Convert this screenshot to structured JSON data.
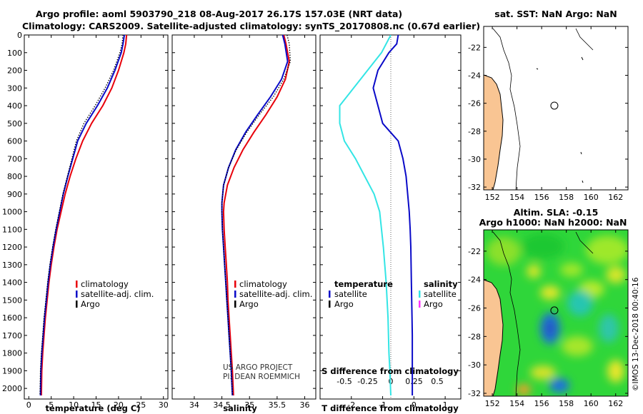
{
  "header": {
    "title_line1": "Argo profile: aoml 5903790_218 08-Aug-2017 26.17S 157.03E (NRT data)",
    "title_line2": "Climatology: CARS2009. Satellite-adjusted climatology: synTS_20170808.nc (0.67d earlier)"
  },
  "colors": {
    "climatology": "#e8000b",
    "satellite": "#0a0ac8",
    "argo": "#000000",
    "sal_satellite": "#33e5e5",
    "sal_argo": "#ff33ff",
    "land": "#f9c593"
  },
  "chart_data": [
    {
      "type": "line",
      "xlabel": "temperature (deg C)",
      "ylabel": "",
      "xlim": [
        -1,
        31
      ],
      "ylim": [
        2060,
        0
      ],
      "y_inverted": true,
      "x_ticks": [
        0,
        5,
        10,
        15,
        20,
        25,
        30
      ],
      "y_ticks": [
        0,
        100,
        200,
        300,
        400,
        500,
        600,
        700,
        800,
        900,
        1000,
        1100,
        1200,
        1300,
        1400,
        1500,
        1600,
        1700,
        1800,
        1900,
        2000
      ],
      "legend": [
        "climatology",
        "satellite-adj. clim.",
        "Argo"
      ],
      "legend_position": "lower-right",
      "series": [
        {
          "name": "climatology",
          "color": "#e8000b",
          "x": [
            21.8,
            21.6,
            21.2,
            20.0,
            18.5,
            16.5,
            14.0,
            12.0,
            10.5,
            9.2,
            8.1,
            7.2,
            6.3,
            5.6,
            5.0,
            4.5,
            4.1,
            3.7,
            3.4,
            3.1,
            2.9,
            2.8
          ],
          "y": [
            0,
            50,
            100,
            200,
            300,
            400,
            500,
            600,
            700,
            800,
            900,
            1000,
            1100,
            1200,
            1300,
            1400,
            1500,
            1600,
            1700,
            1800,
            1900,
            2040
          ]
        },
        {
          "name": "satellite-adj. clim.",
          "color": "#0a0ac8",
          "x": [
            21.3,
            21.0,
            20.6,
            19.2,
            17.5,
            15.3,
            12.8,
            10.9,
            9.8,
            8.7,
            7.7,
            6.9,
            6.1,
            5.4,
            4.8,
            4.3,
            3.9,
            3.5,
            3.2,
            2.9,
            2.7,
            2.6
          ],
          "y": [
            0,
            50,
            100,
            200,
            300,
            400,
            500,
            600,
            700,
            800,
            900,
            1000,
            1100,
            1200,
            1300,
            1400,
            1500,
            1600,
            1700,
            1800,
            1900,
            2040
          ]
        },
        {
          "name": "Argo",
          "color": "#000000",
          "x": [
            21.0,
            20.8,
            20.3,
            18.9,
            17.0,
            14.8,
            12.3,
            10.6,
            9.6,
            8.6,
            7.6,
            6.8,
            6.0,
            5.3,
            4.7,
            4.2,
            3.8,
            3.4,
            3.1,
            2.8,
            2.6,
            2.5
          ],
          "y": [
            0,
            50,
            100,
            200,
            300,
            400,
            500,
            600,
            700,
            800,
            900,
            1000,
            1100,
            1200,
            1300,
            1400,
            1500,
            1600,
            1700,
            1800,
            1900,
            2040
          ]
        }
      ]
    },
    {
      "type": "line",
      "xlabel": "salinity",
      "ylabel": "",
      "xlim": [
        33.6,
        36.2
      ],
      "ylim": [
        2060,
        0
      ],
      "y_inverted": true,
      "x_ticks": [
        34,
        34.5,
        35,
        35.5,
        36
      ],
      "legend": [
        "climatology",
        "satellite-adj. clim.",
        "Argo"
      ],
      "legend_position": "lower-right",
      "annotation_line1": "US ARGO PROJECT",
      "annotation_line2": "PI: DEAN ROEMMICH",
      "series": [
        {
          "name": "climatology",
          "color": "#e8000b",
          "x": [
            35.62,
            35.66,
            35.72,
            35.65,
            35.5,
            35.3,
            35.08,
            34.88,
            34.72,
            34.6,
            34.54,
            34.53,
            34.54,
            34.56,
            34.58,
            34.6,
            34.61,
            34.63,
            34.65,
            34.67,
            34.69,
            34.71
          ],
          "y": [
            0,
            50,
            150,
            250,
            350,
            450,
            550,
            650,
            750,
            850,
            950,
            1000,
            1100,
            1200,
            1300,
            1400,
            1500,
            1600,
            1700,
            1800,
            1900,
            2040
          ]
        },
        {
          "name": "satellite-adj. clim.",
          "color": "#0a0ac8",
          "x": [
            35.6,
            35.64,
            35.69,
            35.58,
            35.38,
            35.15,
            34.93,
            34.75,
            34.62,
            34.53,
            34.5,
            34.5,
            34.51,
            34.53,
            34.55,
            34.57,
            34.59,
            34.61,
            34.63,
            34.65,
            34.67,
            34.69
          ],
          "y": [
            0,
            50,
            150,
            250,
            350,
            450,
            550,
            650,
            750,
            850,
            950,
            1000,
            1100,
            1200,
            1300,
            1400,
            1500,
            1600,
            1700,
            1800,
            1900,
            2040
          ]
        },
        {
          "name": "Argo",
          "color": "#000000",
          "x": [
            35.68,
            35.72,
            35.74,
            35.62,
            35.43,
            35.18,
            34.95,
            34.76,
            34.62,
            34.53,
            34.5,
            34.5,
            34.51,
            34.53,
            34.55,
            34.57,
            34.59,
            34.61,
            34.63,
            34.65,
            34.67,
            34.69
          ],
          "y": [
            0,
            50,
            150,
            250,
            350,
            450,
            550,
            650,
            750,
            850,
            950,
            1000,
            1100,
            1200,
            1300,
            1400,
            1500,
            1600,
            1700,
            1800,
            1900,
            2040
          ]
        }
      ]
    },
    {
      "type": "line",
      "xlabel": "T difference from climatology",
      "ylabel": "",
      "xlim": [
        -3,
        1.5
      ],
      "ylim": [
        2060,
        0
      ],
      "y_inverted": true,
      "x_ticks": [
        -2,
        -1,
        0,
        1
      ],
      "s_label": "S difference from climatology",
      "s_ticks": [
        "-0.5",
        "-0.25",
        "0",
        "0.25",
        "0.5"
      ],
      "legend_temperature_title": "temperature",
      "legend_salinity_title": "salinity",
      "legend": [
        "satellite",
        "Argo",
        "satellite",
        "Argo"
      ],
      "series": [
        {
          "name": "temperature satellite",
          "color": "#0a0ac8",
          "x": [
            -0.5,
            -0.55,
            -0.8,
            -1.15,
            -1.3,
            -1.15,
            -1.0,
            -0.75,
            -0.5,
            -0.35,
            -0.25,
            -0.2,
            -0.15,
            -0.12,
            -0.1,
            -0.08,
            -0.06,
            -0.05,
            -0.05,
            -0.05,
            -0.05
          ],
          "y": [
            0,
            50,
            100,
            200,
            300,
            400,
            500,
            550,
            600,
            700,
            800,
            900,
            1000,
            1100,
            1200,
            1400,
            1600,
            1700,
            1800,
            1900,
            2040
          ]
        },
        {
          "name": "salinity satellite",
          "color": "#33e5e5",
          "x": [
            0.0,
            -0.1,
            -0.25,
            -0.4,
            -0.55,
            -0.55,
            -0.5,
            -0.38,
            -0.28,
            -0.18,
            -0.12,
            -0.08,
            -0.05,
            -0.03,
            -0.02,
            -0.01,
            0.0
          ],
          "x_units": "salinity (S axis)",
          "y": [
            0,
            100,
            200,
            300,
            400,
            500,
            600,
            700,
            800,
            900,
            1000,
            1200,
            1400,
            1600,
            1800,
            1900,
            2040
          ]
        }
      ]
    },
    {
      "type": "map",
      "title": "sat. SST: NaN Argo: NaN",
      "xlim": [
        151.3,
        163.0
      ],
      "ylim": [
        -32.2,
        -20.5
      ],
      "x_ticks": [
        152,
        154,
        156,
        158,
        160,
        162
      ],
      "y_ticks": [
        -22,
        -24,
        -26,
        -28,
        -30,
        -32
      ],
      "marker": {
        "lon": 157.03,
        "lat": -26.17
      }
    },
    {
      "type": "heatmap",
      "title_line1": "Altim. SLA: -0.15",
      "title_line2": "Argo h1000: NaN h2000: NaN",
      "xlim": [
        151.3,
        163.0
      ],
      "ylim": [
        -32.2,
        -20.5
      ],
      "x_ticks": [
        152,
        154,
        156,
        158,
        160,
        162
      ],
      "y_ticks": [
        -22,
        -24,
        -26,
        -28,
        -30,
        -32
      ],
      "marker": {
        "lon": 157.03,
        "lat": -26.17
      }
    }
  ],
  "credit": "©IMOS 13-Dec-2018 00:40:16"
}
